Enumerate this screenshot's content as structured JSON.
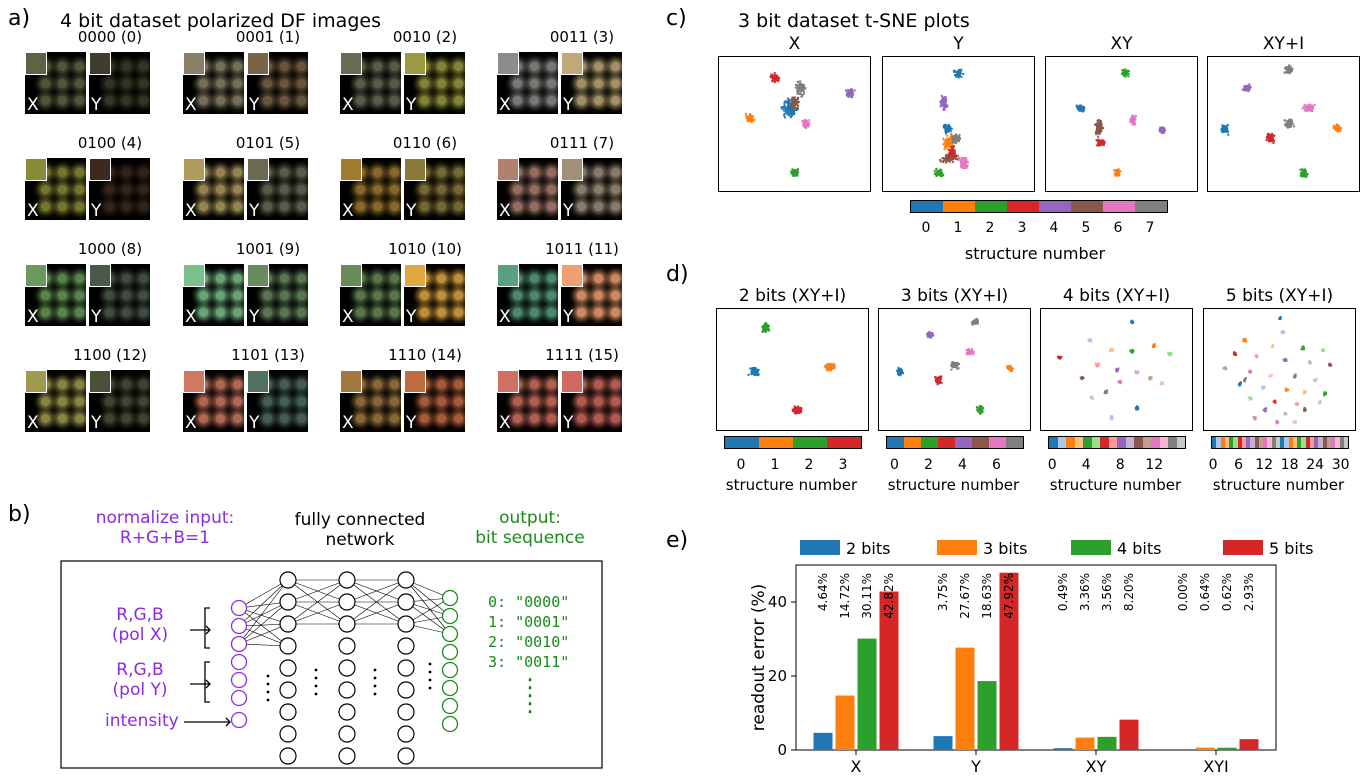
{
  "panels": {
    "a": {
      "letter": "a)",
      "title": "4 bit dataset polarized DF images"
    },
    "b": {
      "letter": "b)",
      "input_title_1": "normalize input:",
      "input_title_2": "R+G+B=1",
      "net_title_1": "fully connected",
      "net_title_2": "network",
      "out_title_1": "output:",
      "out_title_2": "bit sequence",
      "rgb_x_1": "R,G,B",
      "rgb_x_2": "(pol X)",
      "rgb_y_1": "R,G,B",
      "rgb_y_2": "(pol Y)",
      "intensity": "intensity",
      "outputs": [
        "0: \"0000\"",
        "1: \"0001\"",
        "2: \"0010\"",
        "3: \"0011\""
      ]
    },
    "c": {
      "letter": "c)",
      "title": "3 bit dataset t-SNE plots",
      "xlabel": "structure number"
    },
    "d": {
      "letter": "d)",
      "xlabel": "structure number"
    },
    "e": {
      "letter": "e)"
    }
  },
  "tiles": [
    {
      "label": "0000  (0)",
      "x_color": "#5e6443",
      "y_color": "#3f3d2a"
    },
    {
      "label": "0001  (1)",
      "x_color": "#8a8068",
      "y_color": "#7a6447"
    },
    {
      "label": "0010  (2)",
      "x_color": "#6a6a55",
      "y_color": "#9a9a40"
    },
    {
      "label": "0011  (3)",
      "x_color": "#8c8c88",
      "y_color": "#c0a878"
    },
    {
      "label": "0100  (4)",
      "x_color": "#8a8a38",
      "y_color": "#3c2a20"
    },
    {
      "label": "0101  (5)",
      "x_color": "#b09a60",
      "y_color": "#6a6a55"
    },
    {
      "label": "0110  (6)",
      "x_color": "#a07a30",
      "y_color": "#8a7a3a"
    },
    {
      "label": "0111  (7)",
      "x_color": "#b08070",
      "y_color": "#a09078"
    },
    {
      "label": "1000  (8)",
      "x_color": "#6a9a5a",
      "y_color": "#4a5a4a"
    },
    {
      "label": "1001  (9)",
      "x_color": "#7ac08a",
      "y_color": "#6a8a60"
    },
    {
      "label": "1010  (10)",
      "x_color": "#6a8a5a",
      "y_color": "#e0a840"
    },
    {
      "label": "1011  (11)",
      "x_color": "#5aa080",
      "y_color": "#f0a070"
    },
    {
      "label": "1100  (12)",
      "x_color": "#a09a50",
      "y_color": "#4a5038"
    },
    {
      "label": "1101  (13)",
      "x_color": "#d07860",
      "y_color": "#507060"
    },
    {
      "label": "1110  (14)",
      "x_color": "#a07840",
      "y_color": "#c06a40"
    },
    {
      "label": "1111  (15)",
      "x_color": "#d07060",
      "y_color": "#d06a60"
    }
  ],
  "tile_letters": {
    "x": "X",
    "y": "Y"
  },
  "palette": [
    "#1f77b4",
    "#ff7f0e",
    "#2ca02c",
    "#d62728",
    "#9467bd",
    "#8c564b",
    "#e377c2",
    "#7f7f7f"
  ],
  "palette_light": [
    "#1f77b4",
    "#aec7e8",
    "#ff7f0e",
    "#ffbb78",
    "#2ca02c",
    "#98df8a",
    "#d62728",
    "#ff9896",
    "#9467bd",
    "#c5b0d5",
    "#8c564b",
    "#c49c94",
    "#e377c2",
    "#f7b6d2",
    "#7f7f7f",
    "#c7c7c7"
  ],
  "chart_data": [
    {
      "type": "scatter",
      "panel": "c",
      "subplots": [
        "X",
        "Y",
        "XY",
        "XY+I"
      ],
      "colorbar_ticks": [
        "0",
        "1",
        "2",
        "3",
        "4",
        "5",
        "6",
        "7"
      ],
      "xlabel": "structure number"
    },
    {
      "type": "scatter",
      "panel": "d",
      "subplots": [
        {
          "title": "2 bits (XY+I)",
          "ticks": [
            "0",
            "1",
            "2",
            "3"
          ]
        },
        {
          "title": "3 bits (XY+I)",
          "ticks": [
            "0",
            "2",
            "4",
            "6"
          ]
        },
        {
          "title": "4 bits (XY+I)",
          "ticks": [
            "0",
            "4",
            "8",
            "12"
          ]
        },
        {
          "title": "5 bits (XY+I)",
          "ticks": [
            "0",
            "6",
            "12",
            "18",
            "24",
            "30"
          ]
        }
      ],
      "xlabel": "structure number"
    },
    {
      "type": "bar",
      "panel": "e",
      "categories": [
        "X",
        "Y",
        "XY",
        "XYI"
      ],
      "ylabel": "readout error (%)",
      "ylim": [
        0,
        50
      ],
      "yticks": [
        "0",
        "20",
        "40"
      ],
      "series": [
        {
          "name": "2 bits",
          "color": "#1f77b4",
          "values": [
            4.64,
            3.75,
            0.49,
            0.0
          ],
          "labels": [
            "4.64%",
            "3.75%",
            "0.49%",
            "0.00%"
          ]
        },
        {
          "name": "3 bits",
          "color": "#ff7f0e",
          "values": [
            14.72,
            27.67,
            3.36,
            0.64
          ],
          "labels": [
            "14.72%",
            "27.67%",
            "3.36%",
            "0.64%"
          ]
        },
        {
          "name": "4 bits",
          "color": "#2ca02c",
          "values": [
            30.11,
            18.63,
            3.56,
            0.62
          ],
          "labels": [
            "30.11%",
            "18.63%",
            "3.56%",
            "0.62%"
          ]
        },
        {
          "name": "5 bits",
          "color": "#d62728",
          "values": [
            42.82,
            47.92,
            8.2,
            2.93
          ],
          "labels": [
            "42.82%",
            "47.92%",
            "8.20%",
            "2.93%"
          ]
        }
      ]
    }
  ]
}
